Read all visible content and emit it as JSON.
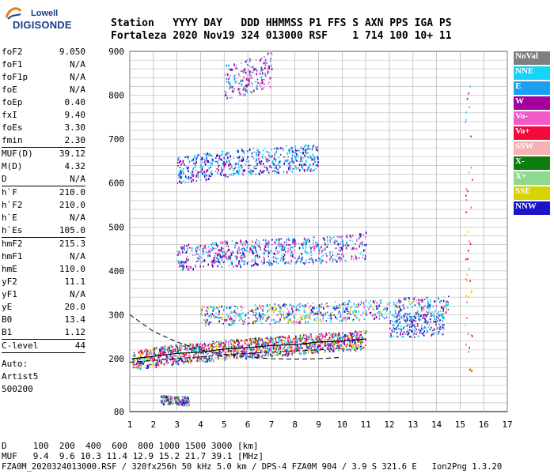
{
  "logo": {
    "brand": "Lowell",
    "product": "DIGISONDE"
  },
  "header": {
    "columns": [
      "Station",
      "YYYY",
      "DAY",
      "DDD",
      "HHMMSS",
      "P1",
      "FFS",
      "S",
      "AXN",
      "PPS",
      "IGA",
      "PS"
    ],
    "values": [
      "Fortaleza",
      "2020",
      "Nov19",
      "324",
      "013000",
      "RSF",
      "",
      "1",
      "714",
      "100",
      "10+",
      "11"
    ]
  },
  "params": [
    {
      "label": "foF2",
      "value": "9.050"
    },
    {
      "label": "foF1",
      "value": "N/A"
    },
    {
      "label": "foF1p",
      "value": "N/A"
    },
    {
      "label": "foE",
      "value": "N/A"
    },
    {
      "label": "foEp",
      "value": "0.40"
    },
    {
      "label": "fxI",
      "value": "9.40"
    },
    {
      "label": "foEs",
      "value": "3.30"
    },
    {
      "label": "fmin",
      "value": "2.30"
    },
    {
      "sep": true
    },
    {
      "label": "MUF(D)",
      "value": "39.12"
    },
    {
      "label": "M(D)",
      "value": "4.32"
    },
    {
      "label": "D",
      "value": "N/A"
    },
    {
      "sep": true
    },
    {
      "label": "h`F",
      "value": "210.0"
    },
    {
      "label": "h`F2",
      "value": "210.0"
    },
    {
      "label": "h`E",
      "value": "N/A"
    },
    {
      "label": "h`Es",
      "value": "105.0"
    },
    {
      "sep": true
    },
    {
      "label": "hmF2",
      "value": "215.3"
    },
    {
      "label": "hmF1",
      "value": "N/A"
    },
    {
      "label": "hmE",
      "value": "110.0"
    },
    {
      "label": "yF2",
      "value": "11.1"
    },
    {
      "label": "yF1",
      "value": "N/A"
    },
    {
      "label": "yE",
      "value": "20.0"
    },
    {
      "label": "B0",
      "value": "13.4"
    },
    {
      "label": "B1",
      "value": "1.12"
    },
    {
      "sep": true
    },
    {
      "label": "C-level",
      "value": "44"
    },
    {
      "sep": true
    }
  ],
  "autoscaling": {
    "line1": "Auto:",
    "line2": "Artist5",
    "line3": "500200"
  },
  "legend": [
    {
      "label": "NoVal",
      "color": "#7f7f7f"
    },
    {
      "label": "NNE",
      "color": "#17d4f6"
    },
    {
      "label": "E",
      "color": "#1a9ff2"
    },
    {
      "label": "W",
      "color": "#a4009c"
    },
    {
      "label": "Vo-",
      "color": "#f25ac6"
    },
    {
      "label": "Vo+",
      "color": "#f20a3a"
    },
    {
      "label": "SSW",
      "color": "#f4b2b2"
    },
    {
      "label": "X-",
      "color": "#0d7e0d"
    },
    {
      "label": "X+",
      "color": "#8fd88f"
    },
    {
      "label": "SSE",
      "color": "#d6d400"
    },
    {
      "label": "NNW",
      "color": "#1a15c8"
    }
  ],
  "bottom": {
    "d_line": "D     100  200  400  600  800 1000 1500 3000 [km]",
    "muf_line": "MUF   9.4  9.6 10.3 11.4 12.9 15.2 21.7 39.1 [MHz]",
    "file_line": "FZA0M_2020324013000.RSF / 320fx256h 50 kHz 5.0 km / DPS-4 FZA0M 904 / 3.9 S 321.6 E   Ion2Png 1.3.20"
  },
  "chart_data": {
    "type": "scatter",
    "x_ticks": [
      "1",
      "2",
      "3",
      "4",
      "5",
      "6",
      "7",
      "8",
      "9",
      "10",
      "11",
      "12",
      "13",
      "14",
      "15",
      "16",
      "17"
    ],
    "y_ticks": [
      "80",
      "200",
      "300",
      "400",
      "500",
      "600",
      "700",
      "800",
      "900"
    ],
    "xlim": [
      1,
      17
    ],
    "ylim": [
      80,
      900
    ],
    "grid": true,
    "traces": [
      {
        "x": [
          1.1,
          2.0,
          3.0,
          4.0,
          5.0,
          6.0,
          7.0,
          8.0,
          9.0,
          10.0,
          11.0
        ],
        "y": [
          200,
          205,
          212,
          215,
          222,
          225,
          230,
          232,
          238,
          240,
          245
        ]
      },
      {
        "x": [
          2.3,
          3.0,
          3.5
        ],
        "y": [
          108,
          106,
          105
        ]
      },
      {
        "x": [
          4.0,
          6.0,
          8.0,
          10.0,
          12.0,
          13.0,
          14.0,
          14.5
        ],
        "y": [
          300,
          302,
          305,
          310,
          315,
          320,
          320,
          322
        ]
      },
      {
        "x": [
          3.0,
          5.0,
          7.0,
          9.0,
          11.0
        ],
        "y": [
          430,
          440,
          445,
          450,
          460
        ]
      },
      {
        "x": [
          3.0,
          5.0,
          7.0,
          9.0
        ],
        "y": [
          630,
          645,
          655,
          660
        ]
      },
      {
        "x": [
          5.0,
          6.0,
          7.0
        ],
        "y": [
          830,
          845,
          860
        ]
      }
    ],
    "dashed_curves": [
      {
        "x": [
          1.0,
          2.0,
          3.0,
          4.0,
          5.0,
          6.0,
          7.0,
          8.0,
          9.0,
          10.0
        ],
        "y": [
          300,
          262,
          238,
          220,
          210,
          204,
          200,
          199,
          200,
          203
        ]
      },
      {
        "x": [
          1.0,
          3.0,
          5.0,
          7.0,
          9.0,
          10.0
        ],
        "y": [
          192,
          200,
          209,
          215,
          220,
          224
        ]
      }
    ]
  }
}
